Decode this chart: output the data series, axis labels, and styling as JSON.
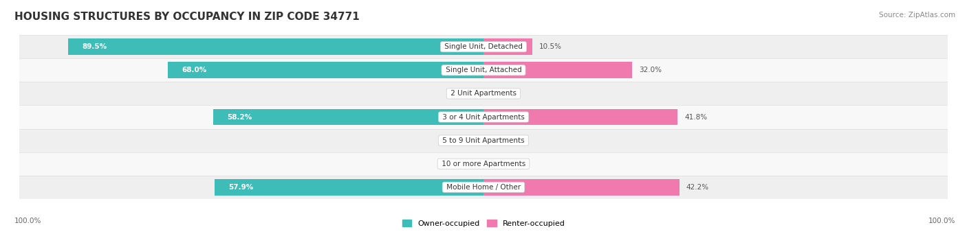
{
  "title": "HOUSING STRUCTURES BY OCCUPANCY IN ZIP CODE 34771",
  "source": "Source: ZipAtlas.com",
  "categories": [
    "Single Unit, Detached",
    "Single Unit, Attached",
    "2 Unit Apartments",
    "3 or 4 Unit Apartments",
    "5 to 9 Unit Apartments",
    "10 or more Apartments",
    "Mobile Home / Other"
  ],
  "owner_pct": [
    89.5,
    68.0,
    0.0,
    58.2,
    0.0,
    0.0,
    57.9
  ],
  "renter_pct": [
    10.5,
    32.0,
    0.0,
    41.8,
    0.0,
    0.0,
    42.2
  ],
  "owner_color": "#3DBCB8",
  "owner_color_zero": "#90D4D2",
  "renter_color": "#F07AAE",
  "renter_color_zero": "#F5BEDD",
  "row_bg_even": "#EFEFEF",
  "row_bg_odd": "#F8F8F8",
  "title_fontsize": 11,
  "label_fontsize": 7.5,
  "tick_fontsize": 7.5,
  "source_fontsize": 7.5,
  "legend_fontsize": 8,
  "owner_label": "Owner-occupied",
  "renter_label": "Renter-occupied",
  "axis_label_left": "100.0%",
  "axis_label_right": "100.0%"
}
